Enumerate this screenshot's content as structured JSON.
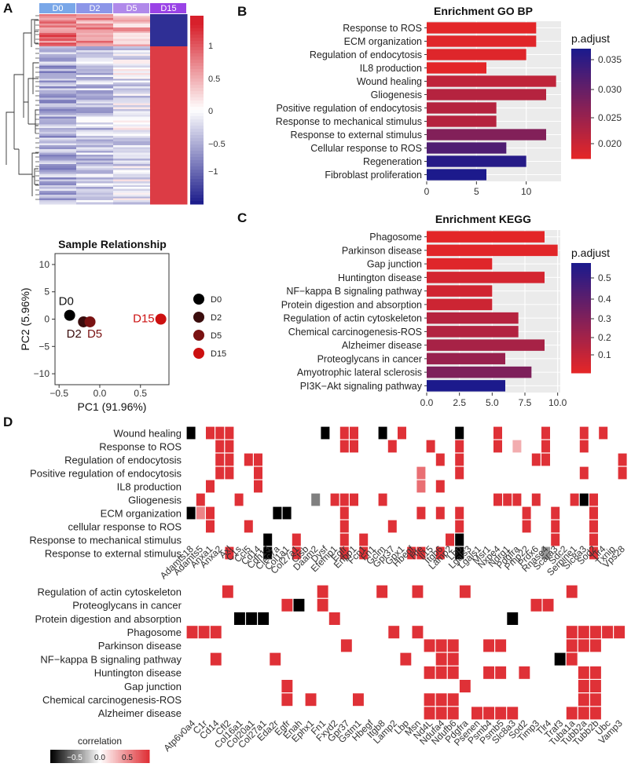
{
  "panel_labels": {
    "a": "A",
    "b": "B",
    "c": "C",
    "d": "D"
  },
  "heatmap": {
    "columns": [
      "D0",
      "D2",
      "D5",
      "D15"
    ],
    "column_colors": [
      "#79a7e8",
      "#8c96e8",
      "#b089ea",
      "#9a43e6"
    ],
    "colorbar_ticks": [
      "1",
      "0.5",
      "0",
      "−0.5",
      "−1"
    ]
  },
  "pca": {
    "title": "Sample Relationship",
    "xlabel": "PC1 (91.96%)",
    "ylabel": "PC2 (5.96%)",
    "x_ticks": [
      "−0.5",
      "0.0",
      "0.5"
    ],
    "y_ticks": [
      "10",
      "5",
      "0",
      "−5",
      "−10"
    ],
    "points": [
      {
        "label": "D0",
        "pc1": -0.37,
        "pc2": 0.7,
        "color": "#000000"
      },
      {
        "label": "D2",
        "pc1": -0.2,
        "pc2": -0.5,
        "color": "#3a0d0d"
      },
      {
        "label": "D5",
        "pc1": -0.12,
        "pc2": -0.5,
        "color": "#7a1212"
      },
      {
        "label": "D15",
        "pc1": 0.75,
        "pc2": 0.0,
        "color": "#cc1010"
      }
    ],
    "legend": [
      "D0",
      "D2",
      "D5",
      "D15"
    ]
  },
  "chart_data": [
    {
      "type": "bar",
      "title": "Enrichment GO BP",
      "orientation": "horizontal",
      "categories": [
        "Response to ROS",
        "ECM organization",
        "Regulation of endocytosis",
        "IL8 production",
        "Wound healing",
        "Gliogenesis",
        "Positive regulation of endocytosis",
        "Response to mechanical stimulus",
        "Response to external stimulus",
        "Cellular response to ROS",
        "Regeneration",
        "Fibroblast proliferation"
      ],
      "values": [
        11,
        11,
        10,
        6,
        13,
        12,
        7,
        7,
        12,
        8,
        10,
        6
      ],
      "padjust": [
        0.0175,
        0.0178,
        0.018,
        0.0175,
        0.021,
        0.022,
        0.022,
        0.022,
        0.027,
        0.032,
        0.036,
        0.037
      ],
      "xlim": [
        0,
        13.5
      ],
      "x_ticks": [
        "0",
        "5",
        "10"
      ],
      "legend_title": "p.adjust",
      "legend_ticks": [
        "0.035",
        "0.030",
        "0.025",
        "0.020"
      ]
    },
    {
      "type": "bar",
      "title": "Enrichment KEGG",
      "orientation": "horizontal",
      "categories": [
        "Phagosome",
        "Parkinson disease",
        "Gap junction",
        "Huntington disease",
        "NF−kappa B signaling pathway",
        "Protein digestion and absorption",
        "Regulation of actin cytoskeleton",
        "Chemical carcinogenesis-ROS",
        "Alzheimer disease",
        "Proteoglycans in cancer",
        "Amyotrophic lateral sclerosis",
        "PI3K−Akt signaling pathway"
      ],
      "values": [
        9,
        10,
        5,
        9,
        5,
        5,
        7,
        7,
        9,
        6,
        8,
        6
      ],
      "padjust": [
        0.05,
        0.055,
        0.06,
        0.09,
        0.1,
        0.11,
        0.17,
        0.18,
        0.21,
        0.25,
        0.32,
        0.58
      ],
      "xlim": [
        0,
        10.2
      ],
      "x_ticks": [
        "0.0",
        "2.5",
        "5.0",
        "7.5",
        "10.0"
      ],
      "legend_title": "p.adjust",
      "legend_ticks": [
        "0.5",
        "0.4",
        "0.3",
        "0.2",
        "0.1"
      ]
    }
  ],
  "heat_d_top": {
    "rows": [
      "Wound healing",
      "Response to ROS",
      "Regulation of endocytosis",
      "Positive regulation of endocytosis",
      "IL8 production",
      "Gliogenesis",
      "ECM organization",
      "cellular response to ROS",
      "Response to mechanical stimulus",
      "Response to external stimulus"
    ],
    "genes": [
      "Adamts18",
      "Adamts5",
      "Anxa1",
      "Anxa2",
      "Axl",
      "C1s",
      "Ccl5",
      "Cd14",
      "Cdh13",
      "Clec7a",
      "Col1a1",
      "Col27a1",
      "Ctsb",
      "Daam2",
      "Dysf",
      "Efemp1",
      "Egfr",
      "Enpp1",
      "Fcn1",
      "Fn1",
      "Gclm",
      "Gpr37",
      "Gpx1",
      "Hbegf",
      "Hfe",
      "Il15",
      "Itgb6",
      "Lamp2",
      "Lbp",
      "Lgals3",
      "Lgals1",
      "Msr1",
      "Nxpe4",
      "Ndrg1",
      "Pdgfra",
      "Pmp22",
      "Prdx6",
      "Rnase4",
      "Scara3",
      "Sdc2",
      "Serpine1",
      "Slc8a3",
      "Sod2",
      "Tlr4",
      "Txnip",
      "Vps28"
    ],
    "cells": [
      [
        0,
        0,
        -1
      ],
      [
        0,
        2,
        1
      ],
      [
        0,
        3,
        1
      ],
      [
        0,
        4,
        1
      ],
      [
        0,
        14,
        -1
      ],
      [
        0,
        16,
        1
      ],
      [
        0,
        17,
        1
      ],
      [
        0,
        20,
        -1
      ],
      [
        0,
        22,
        1
      ],
      [
        0,
        28,
        -1
      ],
      [
        0,
        32,
        1
      ],
      [
        0,
        37,
        1
      ],
      [
        0,
        41,
        1
      ],
      [
        0,
        43,
        1
      ],
      [
        1,
        3,
        1
      ],
      [
        1,
        4,
        1
      ],
      [
        1,
        16,
        1
      ],
      [
        1,
        17,
        1
      ],
      [
        1,
        21,
        1
      ],
      [
        1,
        25,
        1
      ],
      [
        1,
        28,
        1
      ],
      [
        1,
        32,
        1
      ],
      [
        1,
        34,
        0.4
      ],
      [
        1,
        37,
        1
      ],
      [
        1,
        41,
        1
      ],
      [
        2,
        3,
        1
      ],
      [
        2,
        4,
        1
      ],
      [
        2,
        6,
        1
      ],
      [
        2,
        7,
        1
      ],
      [
        2,
        26,
        1
      ],
      [
        2,
        28,
        1
      ],
      [
        2,
        36,
        1
      ],
      [
        2,
        37,
        1
      ],
      [
        2,
        45,
        1
      ],
      [
        3,
        3,
        1
      ],
      [
        3,
        4,
        1
      ],
      [
        3,
        7,
        1
      ],
      [
        3,
        24,
        0.7
      ],
      [
        3,
        28,
        1
      ],
      [
        3,
        41,
        1
      ],
      [
        3,
        45,
        1
      ],
      [
        4,
        2,
        1
      ],
      [
        4,
        7,
        1
      ],
      [
        4,
        24,
        0.7
      ],
      [
        4,
        26,
        1
      ],
      [
        5,
        1,
        1
      ],
      [
        5,
        5,
        1
      ],
      [
        5,
        13,
        -0.5
      ],
      [
        5,
        15,
        1
      ],
      [
        5,
        16,
        1
      ],
      [
        5,
        17,
        1
      ],
      [
        5,
        20,
        1
      ],
      [
        5,
        32,
        1
      ],
      [
        5,
        33,
        1
      ],
      [
        5,
        34,
        1
      ],
      [
        5,
        36,
        1
      ],
      [
        5,
        40,
        1
      ],
      [
        5,
        41,
        -1
      ],
      [
        5,
        42,
        1
      ],
      [
        6,
        0,
        -1
      ],
      [
        6,
        1,
        0.6
      ],
      [
        6,
        2,
        1
      ],
      [
        6,
        9,
        -1
      ],
      [
        6,
        10,
        -1
      ],
      [
        6,
        16,
        1
      ],
      [
        6,
        24,
        1
      ],
      [
        6,
        26,
        1
      ],
      [
        6,
        28,
        1
      ],
      [
        6,
        35,
        1
      ],
      [
        6,
        38,
        1
      ],
      [
        6,
        42,
        1
      ],
      [
        7,
        2,
        1
      ],
      [
        7,
        6,
        1
      ],
      [
        7,
        16,
        1
      ],
      [
        7,
        21,
        1
      ],
      [
        7,
        28,
        1
      ],
      [
        7,
        35,
        1
      ],
      [
        7,
        38,
        1
      ],
      [
        7,
        42,
        1
      ],
      [
        8,
        8,
        -1
      ],
      [
        8,
        11,
        1
      ],
      [
        8,
        16,
        1
      ],
      [
        8,
        18,
        1
      ],
      [
        8,
        27,
        1
      ],
      [
        8,
        28,
        -1
      ],
      [
        8,
        38,
        1
      ],
      [
        8,
        42,
        1
      ],
      [
        9,
        4,
        1
      ],
      [
        9,
        8,
        -1
      ],
      [
        9,
        11,
        1
      ],
      [
        9,
        16,
        1
      ],
      [
        9,
        18,
        1
      ],
      [
        9,
        23,
        1
      ],
      [
        9,
        24,
        1
      ],
      [
        9,
        26,
        1
      ],
      [
        9,
        28,
        -1
      ],
      [
        9,
        37,
        -0.4
      ],
      [
        9,
        42,
        1
      ]
    ]
  },
  "heat_d_bottom": {
    "rows": [
      "Regulation of actin cytoskeleton",
      "Proteoglycans in cancer",
      "Protein digestion and absorption",
      "Phagosome",
      "Parkinson disease",
      "NF−kappa B signaling pathway",
      "Huntington disease",
      "Gap junction",
      "Chemical carcinogenesis-ROS",
      "Alzheimer disease"
    ],
    "genes": [
      "Atp6v0a4",
      "C1r",
      "Cd14",
      "Cfl2",
      "Col16a1",
      "Col20a1",
      "Col27a1",
      "Eda2r",
      "Egfr",
      "Enah",
      "Ephx1",
      "Fn1",
      "Fxyd2",
      "Gpr37",
      "Gstm1",
      "Hbegf",
      "Itgb8",
      "Lamp2",
      "Lbp",
      "Msn",
      "Nd4L",
      "Ndufa4",
      "Ndufb6",
      "Pdgfra",
      "Psenen",
      "Psmb4",
      "Psmb5",
      "Slc8a3",
      "Sod2",
      "Timp3",
      "Tlr4",
      "Traf3",
      "Tuba1a",
      "Tubb2a",
      "Tubb2b",
      "Ubc",
      "Vamp3"
    ],
    "cells": [
      [
        0,
        3,
        1
      ],
      [
        0,
        11,
        1
      ],
      [
        0,
        16,
        1
      ],
      [
        0,
        19,
        1
      ],
      [
        0,
        23,
        1
      ],
      [
        0,
        32,
        1
      ],
      [
        1,
        8,
        1
      ],
      [
        1,
        9,
        -1
      ],
      [
        1,
        11,
        1
      ],
      [
        1,
        29,
        1
      ],
      [
        1,
        30,
        1
      ],
      [
        2,
        4,
        -1
      ],
      [
        2,
        5,
        -1
      ],
      [
        2,
        6,
        -1
      ],
      [
        2,
        12,
        1
      ],
      [
        2,
        27,
        -1
      ],
      [
        3,
        0,
        1
      ],
      [
        3,
        1,
        1
      ],
      [
        3,
        2,
        1
      ],
      [
        3,
        17,
        1
      ],
      [
        3,
        19,
        1
      ],
      [
        3,
        32,
        1
      ],
      [
        3,
        33,
        1
      ],
      [
        3,
        34,
        1
      ],
      [
        3,
        35,
        1
      ],
      [
        3,
        36,
        1
      ],
      [
        4,
        13,
        1
      ],
      [
        4,
        20,
        1
      ],
      [
        4,
        21,
        1
      ],
      [
        4,
        22,
        1
      ],
      [
        4,
        25,
        1
      ],
      [
        4,
        26,
        1
      ],
      [
        4,
        32,
        1
      ],
      [
        4,
        33,
        1
      ],
      [
        4,
        34,
        1
      ],
      [
        5,
        2,
        1
      ],
      [
        5,
        7,
        1
      ],
      [
        5,
        18,
        1
      ],
      [
        5,
        21,
        1
      ],
      [
        5,
        22,
        1
      ],
      [
        5,
        31,
        -1
      ],
      [
        5,
        32,
        1
      ],
      [
        6,
        20,
        1
      ],
      [
        6,
        21,
        1
      ],
      [
        6,
        22,
        1
      ],
      [
        6,
        25,
        1
      ],
      [
        6,
        26,
        1
      ],
      [
        6,
        28,
        1
      ],
      [
        6,
        33,
        1
      ],
      [
        6,
        34,
        1
      ],
      [
        7,
        8,
        1
      ],
      [
        7,
        23,
        1
      ],
      [
        7,
        33,
        1
      ],
      [
        7,
        34,
        1
      ],
      [
        8,
        8,
        1
      ],
      [
        8,
        10,
        1
      ],
      [
        8,
        14,
        1
      ],
      [
        8,
        20,
        1
      ],
      [
        8,
        21,
        1
      ],
      [
        8,
        22,
        1
      ],
      [
        8,
        33,
        1
      ],
      [
        8,
        34,
        1
      ],
      [
        9,
        20,
        1
      ],
      [
        9,
        21,
        1
      ],
      [
        9,
        22,
        1
      ],
      [
        9,
        24,
        1
      ],
      [
        9,
        25,
        1
      ],
      [
        9,
        26,
        1
      ],
      [
        9,
        27,
        1
      ],
      [
        9,
        32,
        1
      ],
      [
        9,
        33,
        1
      ],
      [
        9,
        34,
        1
      ]
    ]
  },
  "correlation_legend": {
    "title": "correlation",
    "ticks": [
      "−0.5",
      "0.0",
      "0.5"
    ]
  }
}
